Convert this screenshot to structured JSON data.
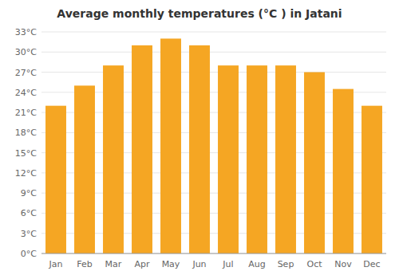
{
  "chart_data": {
    "type": "bar",
    "title": "Average monthly temperatures (°C ) in Jatani",
    "categories": [
      "Jan",
      "Feb",
      "Mar",
      "Apr",
      "May",
      "Jun",
      "Jul",
      "Aug",
      "Sep",
      "Oct",
      "Nov",
      "Dec"
    ],
    "values": [
      22,
      25,
      28,
      31,
      32,
      31,
      28,
      28,
      28,
      27,
      24.5,
      22
    ],
    "color": "#F5A623",
    "ylim": [
      0,
      33
    ],
    "yticks": [
      {
        "value": 0,
        "label": "0°C"
      },
      {
        "value": 3,
        "label": "3°C"
      },
      {
        "value": 6,
        "label": "6°C"
      },
      {
        "value": 9,
        "label": "9°C"
      },
      {
        "value": 12,
        "label": "12°C"
      },
      {
        "value": 15,
        "label": "15°C"
      },
      {
        "value": 18,
        "label": "18°C"
      },
      {
        "value": 21,
        "label": "21°C"
      },
      {
        "value": 24,
        "label": "24°C"
      },
      {
        "value": 27,
        "label": "27°C"
      },
      {
        "value": 30,
        "label": "30°C"
      },
      {
        "value": 33,
        "label": "33°C"
      }
    ],
    "grid": true
  }
}
